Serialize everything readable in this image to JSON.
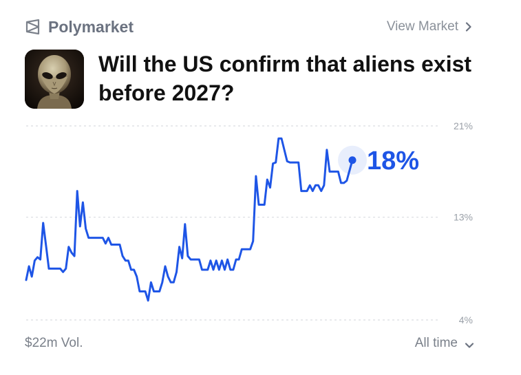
{
  "header": {
    "brand_name": "Polymarket",
    "view_market_label": "View Market"
  },
  "market": {
    "title": "Will the US confirm that aliens exist before 2027?"
  },
  "footer": {
    "volume": "$22m Vol.",
    "range_label": "All time"
  },
  "colors": {
    "line": "#1e55e6",
    "gridline": "#d9dce1"
  },
  "chart_data": {
    "type": "line",
    "title": "",
    "xlabel": "",
    "ylabel": "",
    "ylim": [
      4,
      21
    ],
    "y_ticks": [
      21,
      13,
      4
    ],
    "y_tick_labels": [
      "21%",
      "13%",
      "4%"
    ],
    "grid": true,
    "current_value_label": "18%",
    "series": [
      {
        "values": [
          7.5,
          8.7,
          7.8,
          9.2,
          9.5,
          9.3,
          12.5,
          10.5,
          8.5,
          8.5,
          8.5,
          8.5,
          8.5,
          8.2,
          8.5,
          10.4,
          9.9,
          9.6,
          15.3,
          12.2,
          14.3,
          12.0,
          11.2,
          11.2,
          11.2,
          11.2,
          11.2,
          11.2,
          10.7,
          11.2,
          10.6,
          10.6,
          10.6,
          10.6,
          9.6,
          9.2,
          9.2,
          8.4,
          8.4,
          7.8,
          6.5,
          6.5,
          6.5,
          5.7,
          7.3,
          6.5,
          6.5,
          6.5,
          7.3,
          8.7,
          7.8,
          7.3,
          7.3,
          8.2,
          10.4,
          9.4,
          12.4,
          9.6,
          9.3,
          9.3,
          9.3,
          9.3,
          8.4,
          8.4,
          8.4,
          9.2,
          8.4,
          9.2,
          8.4,
          9.2,
          8.4,
          9.3,
          8.4,
          8.4,
          9.3,
          9.3,
          10.2,
          10.2,
          10.2,
          10.2,
          10.9,
          16.6,
          14.1,
          14.1,
          14.1,
          16.3,
          15.6,
          17.7,
          17.8,
          19.9,
          19.9,
          18.9,
          17.9,
          17.8,
          17.8,
          17.8,
          17.8,
          15.3,
          15.3,
          15.3,
          15.8,
          15.3,
          15.8,
          15.8,
          15.3,
          15.8,
          18.9,
          17.0,
          17.0,
          17.0,
          17.0,
          16.0,
          16.0,
          16.2,
          17.1,
          18.0
        ]
      }
    ]
  }
}
